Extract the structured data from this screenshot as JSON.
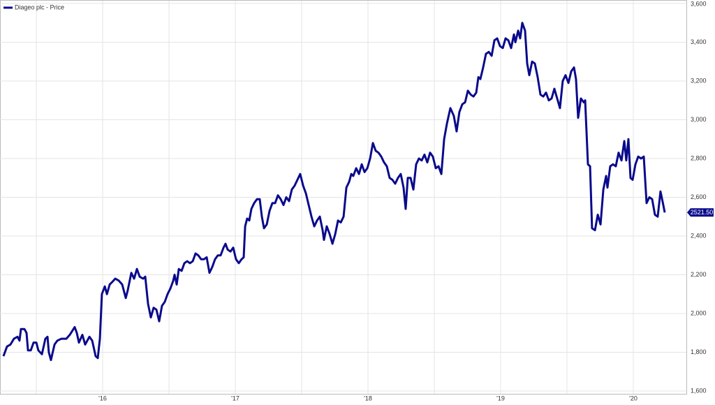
{
  "chart_data": {
    "type": "line",
    "series": [
      {
        "name": "Diageo plc - Price",
        "color": "#0a0a8c",
        "x": [
          2015.252,
          2015.279,
          2015.305,
          2015.331,
          2015.358,
          2015.373,
          2015.384,
          2015.41,
          2015.426,
          2015.437,
          2015.458,
          2015.479,
          2015.5,
          2015.515,
          2015.542,
          2015.568,
          2015.584,
          2015.594,
          2015.61,
          2015.637,
          2015.658,
          2015.689,
          2015.726,
          2015.752,
          2015.789,
          2015.805,
          2015.821,
          2015.847,
          2015.868,
          2015.9,
          2015.921,
          2015.947,
          2015.963,
          2015.979,
          2015.994,
          2016.016,
          2016.032,
          2016.053,
          2016.068,
          2016.095,
          2016.121,
          2016.147,
          2016.174,
          2016.189,
          2016.216,
          2016.237,
          2016.258,
          2016.279,
          2016.305,
          2016.321,
          2016.342,
          2016.363,
          2016.384,
          2016.405,
          2016.426,
          2016.447,
          2016.468,
          2016.489,
          2016.511,
          2016.532,
          2016.542,
          2016.558,
          2016.574,
          2016.595,
          2016.616,
          2016.637,
          2016.658,
          2016.679,
          2016.7,
          2016.721,
          2016.742,
          2016.763,
          2016.784,
          2016.805,
          2016.826,
          2016.847,
          2016.868,
          2016.889,
          2016.911,
          2016.926,
          2016.942,
          2016.963,
          2016.984,
          2017.005,
          2017.026,
          2017.047,
          2017.063,
          2017.074,
          2017.089,
          2017.105,
          2017.121,
          2017.142,
          2017.163,
          2017.184,
          2017.2,
          2017.216,
          2017.237,
          2017.258,
          2017.279,
          2017.3,
          2017.321,
          2017.342,
          2017.363,
          2017.384,
          2017.405,
          2017.426,
          2017.447,
          2017.468,
          2017.489,
          2017.511,
          2017.532,
          2017.553,
          2017.574,
          2017.595,
          2017.616,
          2017.637,
          2017.658,
          2017.668,
          2017.689,
          2017.711,
          2017.732,
          2017.753,
          2017.774,
          2017.795,
          2017.816,
          2017.837,
          2017.858,
          2017.874,
          2017.889,
          2017.911,
          2017.932,
          2017.953,
          2017.974,
          2017.995,
          2018.016,
          2018.037,
          2018.058,
          2018.079,
          2018.1,
          2018.121,
          2018.142,
          2018.163,
          2018.184,
          2018.205,
          2018.226,
          2018.247,
          2018.268,
          2018.284,
          2018.3,
          2018.321,
          2018.342,
          2018.363,
          2018.384,
          2018.405,
          2018.426,
          2018.447,
          2018.468,
          2018.489,
          2018.511,
          2018.532,
          2018.553,
          2018.574,
          2018.595,
          2018.621,
          2018.647,
          2018.668,
          2018.689,
          2018.711,
          2018.732,
          2018.753,
          2018.774,
          2018.795,
          2018.816,
          2018.832,
          2018.847,
          2018.868,
          2018.889,
          2018.911,
          2018.932,
          2018.953,
          2018.974,
          2018.995,
          2019.016,
          2019.037,
          2019.058,
          2019.079,
          2019.1,
          2019.111,
          2019.132,
          2019.147,
          2019.163,
          2019.184,
          2019.2,
          2019.216,
          2019.237,
          2019.258,
          2019.279,
          2019.3,
          2019.321,
          2019.342,
          2019.363,
          2019.384,
          2019.405,
          2019.426,
          2019.447,
          2019.468,
          2019.489,
          2019.511,
          2019.532,
          2019.553,
          2019.568,
          2019.584,
          2019.605,
          2019.626,
          2019.637,
          2019.658,
          2019.674,
          2019.689,
          2019.711,
          2019.732,
          2019.753,
          2019.774,
          2019.795,
          2019.805,
          2019.826,
          2019.847,
          2019.868,
          2019.889,
          2019.911,
          2019.932,
          2019.947,
          2019.963,
          2019.979,
          2019.995,
          2020.016,
          2020.037,
          2020.058,
          2020.079,
          2020.1,
          2020.121,
          2020.142,
          2020.163,
          2020.184,
          2020.205,
          2020.226,
          2020.237
        ],
        "values": [
          1780,
          1830,
          1840,
          1870,
          1880,
          1860,
          1920,
          1920,
          1900,
          1810,
          1810,
          1850,
          1850,
          1810,
          1790,
          1870,
          1880,
          1800,
          1760,
          1840,
          1860,
          1870,
          1870,
          1890,
          1930,
          1900,
          1850,
          1890,
          1840,
          1880,
          1860,
          1780,
          1770,
          1870,
          2100,
          2140,
          2100,
          2150,
          2160,
          2180,
          2170,
          2150,
          2080,
          2120,
          2210,
          2180,
          2230,
          2190,
          2180,
          2190,
          2050,
          1980,
          2030,
          2020,
          1960,
          2040,
          2060,
          2100,
          2130,
          2170,
          2200,
          2150,
          2230,
          2220,
          2260,
          2270,
          2260,
          2270,
          2310,
          2300,
          2280,
          2280,
          2290,
          2210,
          2240,
          2280,
          2300,
          2300,
          2340,
          2360,
          2330,
          2320,
          2340,
          2280,
          2260,
          2280,
          2290,
          2450,
          2490,
          2480,
          2540,
          2570,
          2590,
          2590,
          2500,
          2440,
          2460,
          2530,
          2570,
          2570,
          2610,
          2590,
          2560,
          2600,
          2580,
          2640,
          2660,
          2690,
          2720,
          2660,
          2620,
          2560,
          2500,
          2450,
          2480,
          2500,
          2430,
          2380,
          2450,
          2410,
          2360,
          2410,
          2480,
          2470,
          2500,
          2650,
          2680,
          2720,
          2710,
          2750,
          2720,
          2770,
          2730,
          2750,
          2800,
          2880,
          2840,
          2830,
          2810,
          2780,
          2760,
          2700,
          2690,
          2670,
          2700,
          2720,
          2650,
          2540,
          2700,
          2700,
          2640,
          2770,
          2800,
          2790,
          2820,
          2780,
          2830,
          2810,
          2750,
          2760,
          2720,
          2900,
          2980,
          3060,
          3020,
          2940,
          3040,
          3080,
          3090,
          3150,
          3130,
          3120,
          3140,
          3220,
          3210,
          3270,
          3340,
          3350,
          3330,
          3410,
          3420,
          3380,
          3370,
          3420,
          3410,
          3370,
          3440,
          3400,
          3460,
          3420,
          3500,
          3460,
          3290,
          3230,
          3300,
          3290,
          3220,
          3130,
          3120,
          3140,
          3100,
          3110,
          3160,
          3110,
          3060,
          3200,
          3230,
          3190,
          3250,
          3270,
          3210,
          3010,
          3110,
          3090,
          3100,
          2770,
          2760,
          2440,
          2430,
          2510,
          2460,
          2640,
          2710,
          2650,
          2760,
          2770,
          2760,
          2830,
          2790,
          2890,
          2790,
          2900,
          2700,
          2690,
          2770,
          2810,
          2800,
          2810,
          2570,
          2600,
          2590,
          2510,
          2500,
          2630,
          2560,
          2521.5
        ]
      }
    ],
    "last_price": {
      "value": 2521.5,
      "label": "2521.50"
    },
    "xlim": [
      2015.226,
      2020.4
    ],
    "xticks": [
      {
        "value": 2016,
        "label": "'16"
      },
      {
        "value": 2017,
        "label": "'17"
      },
      {
        "value": 2018,
        "label": "'18"
      },
      {
        "value": 2019,
        "label": "'19"
      },
      {
        "value": 2020,
        "label": "'20"
      }
    ],
    "xminor": [
      2015.5,
      2016.5,
      2017.5,
      2018.5,
      2019.5
    ],
    "ylim": [
      1600,
      3600
    ],
    "yticks": [
      {
        "value": 1600,
        "label": "1,600"
      },
      {
        "value": 1800,
        "label": "1,800"
      },
      {
        "value": 2000,
        "label": "2,000"
      },
      {
        "value": 2200,
        "label": "2,200"
      },
      {
        "value": 2400,
        "label": "2,400"
      },
      {
        "value": 2600,
        "label": "2,600"
      },
      {
        "value": 2800,
        "label": "2,800"
      },
      {
        "value": 3000,
        "label": "3,000"
      },
      {
        "value": 3200,
        "label": "3,200"
      },
      {
        "value": 3400,
        "label": "3,400"
      },
      {
        "value": 3600,
        "label": "3,600"
      }
    ],
    "grid": true
  }
}
